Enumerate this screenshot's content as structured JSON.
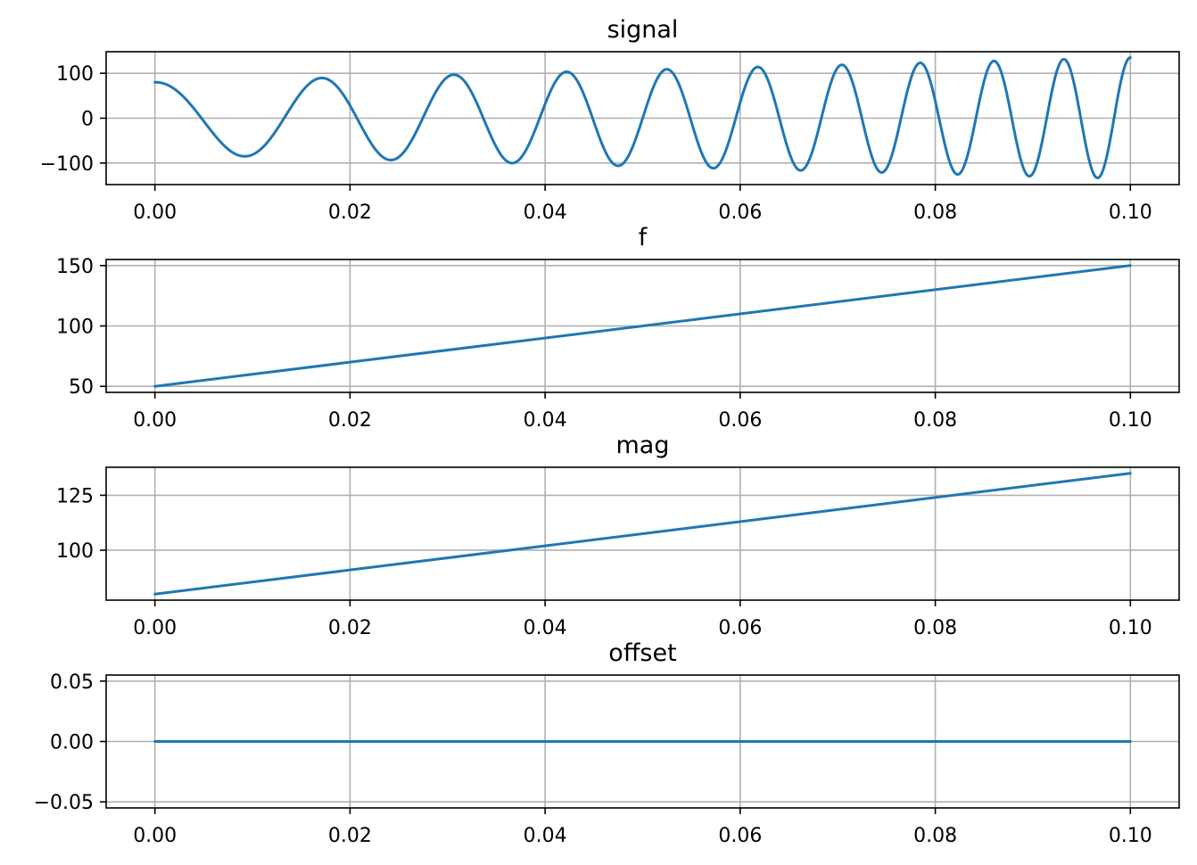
{
  "chart_data": [
    {
      "type": "line",
      "title": "signal",
      "xlabel": "",
      "ylabel": "",
      "xlim": [
        -0.005,
        0.105
      ],
      "ylim": [
        -148,
        148
      ],
      "x_ticks": [
        0.0,
        0.02,
        0.04,
        0.06,
        0.08,
        0.1
      ],
      "x_tick_labels": [
        "0.00",
        "0.02",
        "0.04",
        "0.06",
        "0.08",
        "0.10"
      ],
      "y_ticks": [
        -100,
        0,
        100
      ],
      "y_tick_labels": [
        "−100",
        "0",
        "100"
      ],
      "grid": true,
      "x_range": [
        0.0,
        0.1
      ],
      "function": "(80 + 550*t) * cos(2*pi*(50 + 500*t)*t)",
      "series": [
        {
          "color": "#1f77b4",
          "samples": [
            {
              "x": 0.0,
              "y": 80.0
            },
            {
              "x": 0.0091,
              "y": -86
            },
            {
              "x": 0.0171,
              "y": 89
            },
            {
              "x": 0.0242,
              "y": -93
            },
            {
              "x": 0.0306,
              "y": 97
            },
            {
              "x": 0.0366,
              "y": -100
            },
            {
              "x": 0.0421,
              "y": 103
            },
            {
              "x": 0.0474,
              "y": -106
            },
            {
              "x": 0.0523,
              "y": 109
            },
            {
              "x": 0.057,
              "y": -111
            },
            {
              "x": 0.0616,
              "y": 114
            },
            {
              "x": 0.0659,
              "y": -116
            },
            {
              "x": 0.0701,
              "y": 119
            },
            {
              "x": 0.0742,
              "y": -121
            },
            {
              "x": 0.0781,
              "y": 123
            },
            {
              "x": 0.0819,
              "y": -125
            },
            {
              "x": 0.0856,
              "y": 127
            },
            {
              "x": 0.0892,
              "y": -129
            },
            {
              "x": 0.0927,
              "y": 131
            },
            {
              "x": 0.0962,
              "y": -133
            },
            {
              "x": 0.1,
              "y": 135
            }
          ]
        }
      ]
    },
    {
      "type": "line",
      "title": "f",
      "xlabel": "",
      "ylabel": "",
      "xlim": [
        -0.005,
        0.105
      ],
      "ylim": [
        45,
        155
      ],
      "x_ticks": [
        0.0,
        0.02,
        0.04,
        0.06,
        0.08,
        0.1
      ],
      "x_tick_labels": [
        "0.00",
        "0.02",
        "0.04",
        "0.06",
        "0.08",
        "0.10"
      ],
      "y_ticks": [
        50,
        100,
        150
      ],
      "y_tick_labels": [
        "50",
        "100",
        "150"
      ],
      "grid": true,
      "series": [
        {
          "color": "#1f77b4",
          "x": [
            0.0,
            0.1
          ],
          "y": [
            50,
            150
          ]
        }
      ]
    },
    {
      "type": "line",
      "title": "mag",
      "xlabel": "",
      "ylabel": "",
      "xlim": [
        -0.005,
        0.105
      ],
      "ylim": [
        77.25,
        137.75
      ],
      "x_ticks": [
        0.0,
        0.02,
        0.04,
        0.06,
        0.08,
        0.1
      ],
      "x_tick_labels": [
        "0.00",
        "0.02",
        "0.04",
        "0.06",
        "0.08",
        "0.10"
      ],
      "y_ticks": [
        100,
        125
      ],
      "y_tick_labels": [
        "100",
        "125"
      ],
      "grid": true,
      "series": [
        {
          "color": "#1f77b4",
          "x": [
            0.0,
            0.1
          ],
          "y": [
            80,
            135
          ]
        }
      ]
    },
    {
      "type": "line",
      "title": "offset",
      "xlabel": "",
      "ylabel": "",
      "xlim": [
        -0.005,
        0.105
      ],
      "ylim": [
        -0.055,
        0.055
      ],
      "x_ticks": [
        0.0,
        0.02,
        0.04,
        0.06,
        0.08,
        0.1
      ],
      "x_tick_labels": [
        "0.00",
        "0.02",
        "0.04",
        "0.06",
        "0.08",
        "0.10"
      ],
      "y_ticks": [
        -0.05,
        0.0,
        0.05
      ],
      "y_tick_labels": [
        "−0.05",
        "0.00",
        "0.05"
      ],
      "grid": true,
      "series": [
        {
          "color": "#1f77b4",
          "x": [
            0.0,
            0.1
          ],
          "y": [
            0.0,
            0.0
          ]
        }
      ]
    }
  ]
}
